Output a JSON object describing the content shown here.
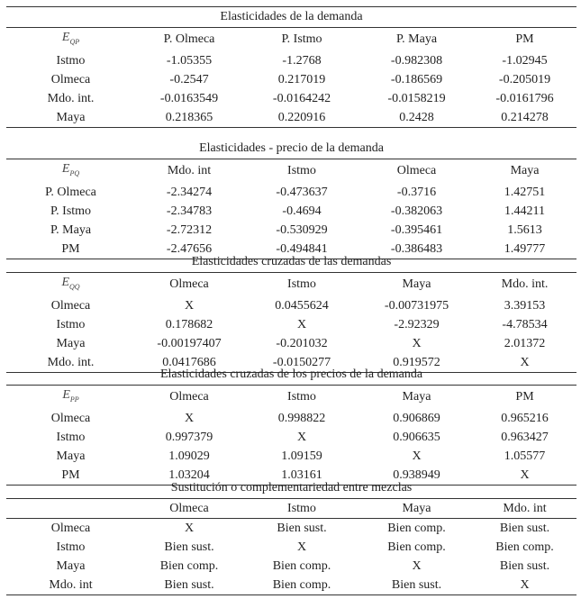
{
  "sections": [
    {
      "title": "Elasticidades de la demanda",
      "symbol": {
        "base": "E",
        "sub": "QP"
      },
      "columns": [
        "P. Olmeca",
        "P. Istmo",
        "P. Maya",
        "PM"
      ],
      "rows": [
        {
          "label": "Istmo",
          "values": [
            "-1.05355",
            "-1.2768",
            "-0.982308",
            "-1.02945"
          ]
        },
        {
          "label": "Olmeca",
          "values": [
            "-0.2547",
            "0.217019",
            "-0.186569",
            "-0.205019"
          ]
        },
        {
          "label": "Mdo. int.",
          "values": [
            "-0.0163549",
            "-0.0164242",
            "-0.0158219",
            "-0.0161796"
          ]
        },
        {
          "label": "Maya",
          "values": [
            "0.218365",
            "0.220916",
            "0.2428",
            "0.214278"
          ]
        }
      ]
    },
    {
      "title": "Elasticidades - precio de la demanda",
      "symbol": {
        "base": "E",
        "sub": "PQ"
      },
      "columns": [
        "Mdo. int",
        "Istmo",
        "Olmeca",
        "Maya"
      ],
      "rows": [
        {
          "label": "P. Olmeca",
          "values": [
            "-2.34274",
            "-0.473637",
            "-0.3716",
            "1.42751"
          ]
        },
        {
          "label": "P. Istmo",
          "values": [
            "-2.34783",
            "-0.4694",
            "-0.382063",
            "1.44211"
          ]
        },
        {
          "label": "P. Maya",
          "values": [
            "-2.72312",
            "-0.530929",
            "-0.395461",
            "1.5613"
          ]
        },
        {
          "label": "PM",
          "values": [
            "-2.47656",
            "-0.494841",
            "-0.386483",
            "1.49777"
          ]
        }
      ]
    },
    {
      "title": "Elasticidades cruzadas de las demandas",
      "symbol": {
        "base": "E",
        "sub": "QQ"
      },
      "columns": [
        "Olmeca",
        "Istmo",
        "Maya",
        "Mdo. int."
      ],
      "rows": [
        {
          "label": "Olmeca",
          "values": [
            "X",
            "0.0455624",
            "-0.00731975",
            "3.39153"
          ]
        },
        {
          "label": "Istmo",
          "values": [
            "0.178682",
            "X",
            "-2.92329",
            "-4.78534"
          ]
        },
        {
          "label": "Maya",
          "values": [
            "-0.00197407",
            "-0.201032",
            "X",
            "2.01372"
          ]
        },
        {
          "label": "Mdo. int.",
          "values": [
            "0.0417686",
            "-0.0150277",
            "0.919572",
            "X"
          ]
        }
      ]
    },
    {
      "title": "Elasticidades cruzadas de los precios de la demanda",
      "symbol": {
        "base": "E",
        "sub": "PP"
      },
      "columns": [
        "Olmeca",
        "Istmo",
        "Maya",
        "PM"
      ],
      "rows": [
        {
          "label": "Olmeca",
          "values": [
            "X",
            "0.998822",
            "0.906869",
            "0.965216"
          ]
        },
        {
          "label": "Istmo",
          "values": [
            "0.997379",
            "X",
            "0.906635",
            "0.963427"
          ]
        },
        {
          "label": "Maya",
          "values": [
            "1.09029",
            "1.09159",
            "X",
            "1.05577"
          ]
        },
        {
          "label": "PM",
          "values": [
            "1.03204",
            "1.03161",
            "0.938949",
            "X"
          ]
        }
      ]
    },
    {
      "title": "Sustitución o complementariedad entre mezclas",
      "symbol": null,
      "columns": [
        "Olmeca",
        "Istmo",
        "Maya",
        "Mdo. int"
      ],
      "rows": [
        {
          "label": "Olmeca",
          "values": [
            "X",
            "Bien sust.",
            "Bien comp.",
            "Bien sust."
          ]
        },
        {
          "label": "Istmo",
          "values": [
            "Bien sust.",
            "X",
            "Bien comp.",
            "Bien comp."
          ]
        },
        {
          "label": "Maya",
          "values": [
            "Bien comp.",
            "Bien comp.",
            "X",
            "Bien sust."
          ]
        },
        {
          "label": "Mdo. int",
          "values": [
            "Bien sust.",
            "Bien comp.",
            "Bien sust.",
            "X"
          ]
        }
      ]
    }
  ]
}
